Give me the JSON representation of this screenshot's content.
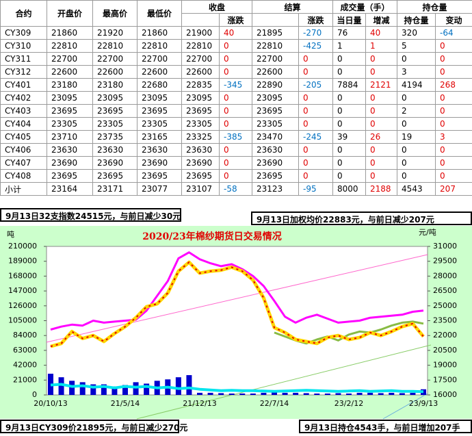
{
  "table": {
    "header_top": [
      "合约",
      "开盘价",
      "最高价",
      "最低价",
      "收盘",
      "结算",
      "成交量（手）",
      "持仓量"
    ],
    "header_sub": [
      "涨跌",
      "涨跌",
      "当日量",
      "增减",
      "持仓量",
      "变动"
    ],
    "rows": [
      [
        "CY309",
        21860,
        21920,
        21860,
        21900,
        40,
        21895,
        -270,
        76,
        40,
        320,
        -64
      ],
      [
        "CY310",
        22810,
        22810,
        22810,
        22810,
        0,
        22810,
        -425,
        1,
        1,
        5,
        0
      ],
      [
        "CY311",
        22700,
        22700,
        22700,
        22700,
        0,
        22700,
        0,
        0,
        0,
        0,
        0
      ],
      [
        "CY312",
        22600,
        22600,
        22600,
        22600,
        0,
        22600,
        0,
        0,
        0,
        3,
        0
      ],
      [
        "CY401",
        23180,
        23180,
        22680,
        22835,
        -345,
        22890,
        -205,
        7884,
        2121,
        4194,
        268
      ],
      [
        "CY402",
        23095,
        23095,
        23095,
        23095,
        0,
        23095,
        0,
        0,
        0,
        0,
        0
      ],
      [
        "CY403",
        23695,
        23695,
        23695,
        23695,
        0,
        23695,
        0,
        0,
        0,
        2,
        0
      ],
      [
        "CY404",
        23305,
        23305,
        23305,
        23305,
        0,
        23305,
        0,
        0,
        0,
        0,
        0
      ],
      [
        "CY405",
        23710,
        23735,
        23165,
        23325,
        -385,
        23470,
        -245,
        39,
        26,
        19,
        3
      ],
      [
        "CY406",
        23630,
        23630,
        23630,
        23630,
        0,
        23630,
        0,
        0,
        0,
        0,
        0
      ],
      [
        "CY407",
        23690,
        23690,
        23690,
        23690,
        0,
        23690,
        0,
        0,
        0,
        0,
        0
      ],
      [
        "CY408",
        23695,
        23695,
        23695,
        23695,
        0,
        23695,
        0,
        0,
        0,
        0,
        0
      ],
      [
        "小计",
        23164,
        23171,
        23077,
        23107,
        -58,
        23123,
        -95,
        8000,
        2188,
        4543,
        207
      ]
    ]
  },
  "notes": {
    "top_left": "9月13日32支指数24515元，与前日减少30元",
    "top_right": "9月13日加权均价22883元，与前日减少207元",
    "bottom_left": "9月13日CY309价21895元，与前日减少270元",
    "bottom_right": "9月13日持仓4543手，与前日增加207手"
  },
  "chart_data": {
    "type": "line",
    "title": "2020/23年棉纱期货日交易情况",
    "y_label": "吨",
    "y2_label": "元/吨",
    "categories": [
      "20/10/13",
      null,
      null,
      null,
      null,
      null,
      null,
      "21/5/14",
      null,
      null,
      null,
      null,
      null,
      null,
      "21/12/13",
      null,
      null,
      null,
      null,
      null,
      null,
      "22/7/14",
      null,
      null,
      null,
      null,
      null,
      null,
      "23/2/12",
      null,
      null,
      null,
      null,
      null,
      null,
      "23/9/13"
    ],
    "ylim": [
      0,
      210000
    ],
    "yticks": [
      0,
      21000,
      42000,
      63000,
      84000,
      105000,
      126000,
      147000,
      168000,
      189000,
      210000
    ],
    "y2lim": [
      16000,
      31000
    ],
    "y2ticks": [
      16000,
      17500,
      19000,
      20500,
      22000,
      23500,
      25000,
      26500,
      28000,
      29500,
      31000
    ],
    "series": [
      {
        "kind": "bar",
        "color": "#0000cc",
        "values": [
          30000,
          25000,
          20000,
          18000,
          15000,
          15000,
          12000,
          14000,
          18000,
          16000,
          20000,
          22000,
          25000,
          28000,
          3000,
          3000,
          2500,
          2000,
          2000,
          2000,
          3000,
          4000,
          3000,
          3000,
          2500,
          2000,
          2000,
          2500,
          2000,
          3000,
          3000,
          2500,
          3000,
          2500,
          3000,
          8000
        ]
      },
      {
        "kind": "line",
        "color": "#00e5ee",
        "values": [
          14000,
          15000,
          12000,
          13000,
          11000,
          12000,
          10000,
          12000,
          11000,
          12000,
          10000,
          11000,
          9000,
          10000,
          8000,
          7000,
          6000,
          6500,
          6000,
          6000,
          5500,
          5000,
          5500,
          6000,
          6500,
          6000,
          5500,
          5000,
          5500,
          6000,
          5000,
          5500,
          6000,
          5000,
          5000,
          4543
        ]
      },
      {
        "kind": "line",
        "axis": "y2",
        "color": "#ff00ff",
        "values": [
          22600,
          22900,
          23100,
          23000,
          23500,
          23300,
          23400,
          23500,
          23600,
          24500,
          26000,
          27500,
          29800,
          30400,
          29700,
          29300,
          29000,
          29200,
          28700,
          28000,
          27000,
          25500,
          23900,
          23300,
          23800,
          24100,
          23700,
          23300,
          23400,
          23500,
          23800,
          23900,
          24000,
          24100,
          24400,
          24515
        ]
      },
      {
        "kind": "line",
        "axis": "y2",
        "color": "#88bb44",
        "values": [
          null,
          null,
          null,
          null,
          null,
          null,
          null,
          null,
          null,
          null,
          null,
          null,
          null,
          null,
          null,
          null,
          null,
          null,
          null,
          null,
          null,
          22300,
          21900,
          21500,
          21200,
          21600,
          21900,
          21500,
          22100,
          22400,
          22300,
          22600,
          23000,
          23300,
          23400,
          23200
        ]
      },
      {
        "kind": "line",
        "axis": "y2",
        "color": "#ffd700",
        "dash_color": "#e00000",
        "values": [
          20900,
          21200,
          22400,
          21700,
          22000,
          21400,
          22200,
          22900,
          23800,
          24900,
          25200,
          26300,
          28500,
          29400,
          28300,
          28500,
          28600,
          28900,
          28500,
          27600,
          25800,
          22800,
          22300,
          21600,
          21400,
          21200,
          21800,
          22000,
          21600,
          21800,
          22300,
          22000,
          22400,
          22900,
          23200,
          21895
        ]
      }
    ]
  }
}
